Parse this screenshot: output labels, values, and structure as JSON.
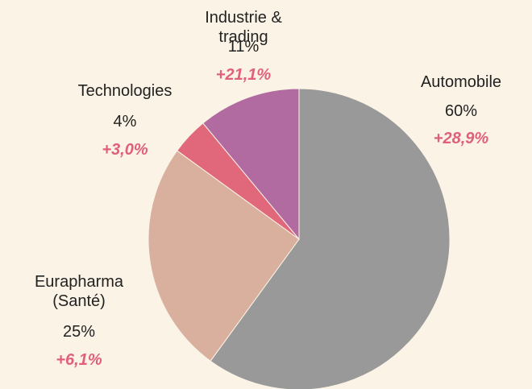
{
  "chart_data": {
    "type": "pie",
    "categories": [
      "Automobile",
      "Eurapharma (Santé)",
      "Technologies",
      "Industrie & trading"
    ],
    "values": [
      60,
      25,
      4,
      11
    ],
    "value_labels": [
      "60%",
      "25%",
      "4%",
      "11%"
    ],
    "annotations": [
      "+28,9%",
      "+6,1%",
      "+3,0%",
      "+21,1%"
    ],
    "colors": [
      "#999999",
      "#d9b09e",
      "#e0687a",
      "#b26ba0"
    ],
    "annotation_color": "#e0607a"
  }
}
